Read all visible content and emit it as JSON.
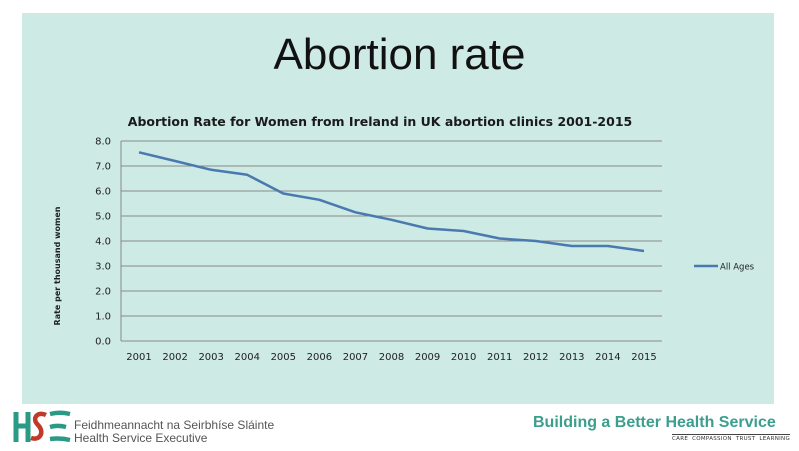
{
  "slide": {
    "title": "Abortion rate"
  },
  "footer": {
    "org_irish": "Feidhmeannacht na Seirbhíse Sláinte",
    "org_english": "Health Service Executive",
    "tagline": "Building a Better Health Service",
    "values": [
      "CARE",
      "COMPASSION",
      "TRUST",
      "LEARNING"
    ],
    "brand_color": "#2a9a86",
    "logo_accent": "#c0392b"
  },
  "chart_data": {
    "type": "line",
    "title": "Abortion Rate for Women from Ireland in UK abortion clinics 2001-2015",
    "xlabel": "",
    "ylabel": "Rate per thousand women",
    "ylim": [
      0,
      8
    ],
    "yticks": [
      "0.0",
      "1.0",
      "2.0",
      "3.0",
      "4.0",
      "5.0",
      "6.0",
      "7.0",
      "8.0"
    ],
    "categories": [
      "2001",
      "2002",
      "2003",
      "2004",
      "2005",
      "2006",
      "2007",
      "2008",
      "2009",
      "2010",
      "2011",
      "2012",
      "2013",
      "2014",
      "2015"
    ],
    "series": [
      {
        "name": "All Ages",
        "color": "#4a79b0",
        "values": [
          7.55,
          7.2,
          6.85,
          6.65,
          5.9,
          5.65,
          5.15,
          4.85,
          4.5,
          4.4,
          4.1,
          4.0,
          3.8,
          3.8,
          3.6
        ]
      }
    ],
    "grid": true,
    "legend": "right"
  }
}
